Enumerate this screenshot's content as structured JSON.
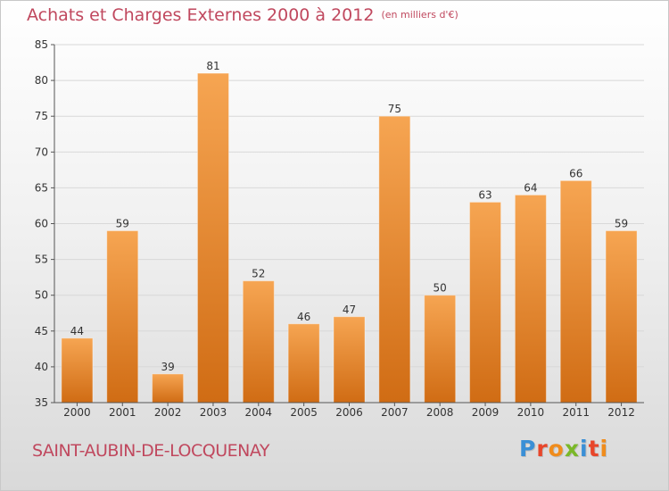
{
  "header": {
    "title": "Achats et Charges Externes 2000 à 2012",
    "subtitle": "(en milliers d'€)"
  },
  "footer": {
    "commune": "SAINT-AUBIN-DE-LOCQUENAY",
    "logo": "Proxiti",
    "logo_colors": [
      "#3a8fd6",
      "#e8462a",
      "#f08c1c",
      "#7ab828",
      "#3a8fd6",
      "#e8462a",
      "#f08c1c"
    ]
  },
  "colors": {
    "bar_top": "#f6a552",
    "bar_bottom": "#d06c14",
    "axis": "#555555",
    "grid": "#d8d8d8",
    "text": "#333333"
  },
  "chart_data": {
    "type": "bar",
    "title": "Achats et Charges Externes 2000 à 2012",
    "subtitle": "(en milliers d'€)",
    "categories": [
      "2000",
      "2001",
      "2002",
      "2003",
      "2004",
      "2005",
      "2006",
      "2007",
      "2008",
      "2009",
      "2010",
      "2011",
      "2012"
    ],
    "values": [
      44,
      59,
      39,
      81,
      52,
      46,
      47,
      75,
      50,
      63,
      64,
      66,
      59
    ],
    "ylim": [
      35,
      85
    ],
    "yticks": [
      35,
      40,
      45,
      50,
      55,
      60,
      65,
      70,
      75,
      80,
      85
    ],
    "grid": true,
    "data_labels": true
  }
}
